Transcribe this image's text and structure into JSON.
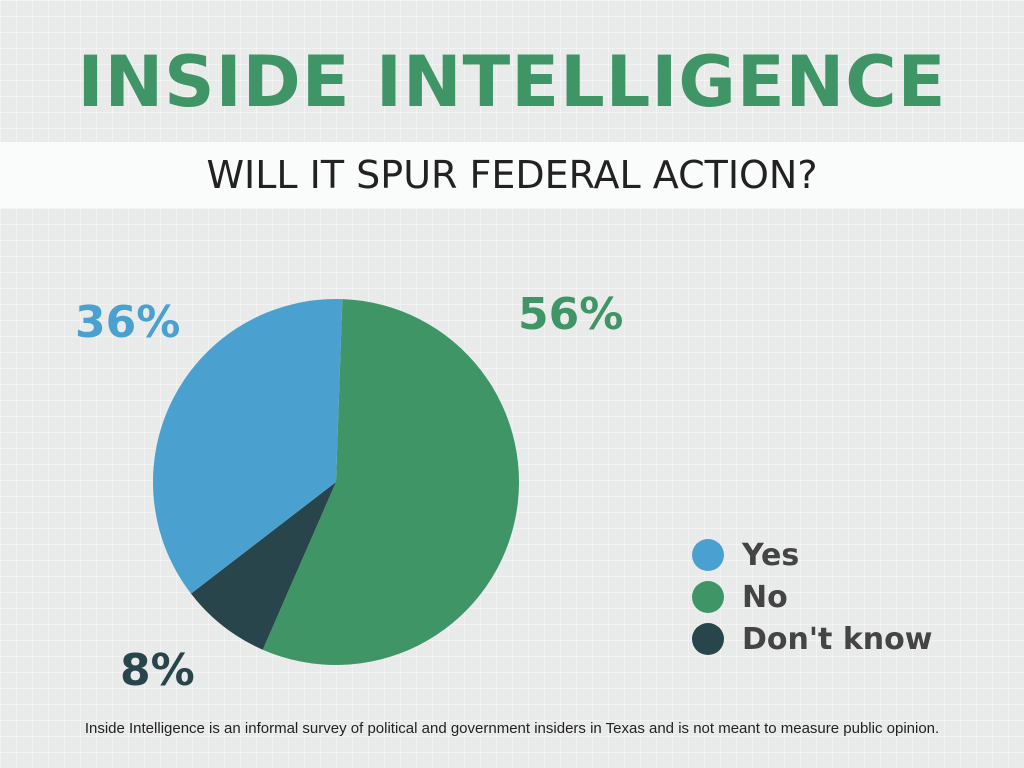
{
  "header": {
    "title": "INSIDE INTELLIGENCE",
    "color": "#3f9566"
  },
  "chart_data": {
    "type": "pie",
    "title": "WILL IT SPUR FEDERAL ACTION?",
    "slices": [
      {
        "name": "Yes",
        "value": 36,
        "label": "36%",
        "color": "#4aa1cf"
      },
      {
        "name": "No",
        "value": 56,
        "label": "56%",
        "color": "#3f9566"
      },
      {
        "name": "Don't know",
        "value": 8,
        "label": "8%",
        "color": "#27454b"
      }
    ],
    "legend_position": "bottom-right"
  },
  "footnote": "Inside Intelligence is an informal survey of political and government insiders in Texas and is not meant to measure public opinion."
}
